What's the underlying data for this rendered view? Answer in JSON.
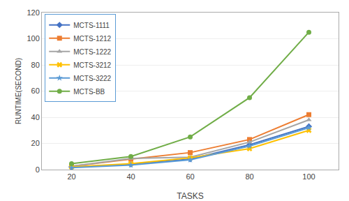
{
  "chart_data": {
    "type": "line",
    "x": [
      20,
      40,
      60,
      80,
      100
    ],
    "series": [
      {
        "name": "MCTS-1111",
        "color": "#4472C4",
        "marker": "diamond",
        "values": [
          2.0,
          4.0,
          8.0,
          19.0,
          33.0
        ]
      },
      {
        "name": "MCTS-1212",
        "color": "#ED7D31",
        "marker": "square",
        "values": [
          2.5,
          8.0,
          13.0,
          23.0,
          42.0
        ]
      },
      {
        "name": "MCTS-1222",
        "color": "#A5A5A5",
        "marker": "triangle-up",
        "values": [
          2.5,
          8.5,
          9.5,
          21.0,
          38.0
        ]
      },
      {
        "name": "MCTS-3212",
        "color": "#FFC000",
        "marker": "x",
        "values": [
          2.0,
          4.5,
          9.0,
          16.0,
          30.0
        ]
      },
      {
        "name": "MCTS-3222",
        "color": "#5B9BD5",
        "marker": "star",
        "values": [
          1.5,
          3.5,
          7.5,
          18.0,
          32.0
        ]
      },
      {
        "name": "MCTS-BB",
        "color": "#70AD47",
        "marker": "circle",
        "values": [
          4.5,
          10.0,
          25.0,
          55.0,
          105.0
        ]
      }
    ],
    "xlabel": "TASKS",
    "ylabel": "RUNTIME(SECOND)",
    "xlim": [
      10,
      110
    ],
    "xticks": [
      20,
      40,
      60,
      80,
      100
    ],
    "ylim": [
      0,
      120
    ],
    "yticks": [
      0,
      20,
      40,
      60,
      80,
      100,
      120
    ],
    "grid": true,
    "legend": "upper left"
  }
}
